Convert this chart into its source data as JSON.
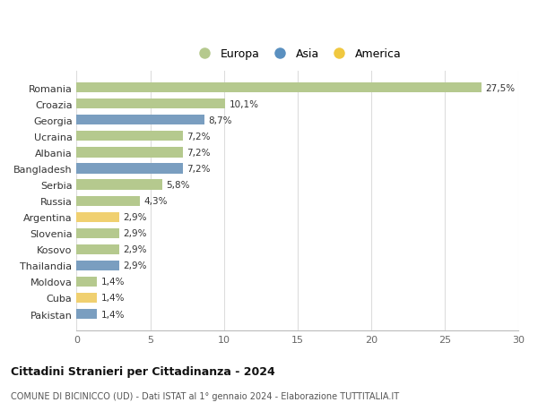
{
  "categories": [
    "Romania",
    "Croazia",
    "Georgia",
    "Ucraina",
    "Albania",
    "Bangladesh",
    "Serbia",
    "Russia",
    "Argentina",
    "Slovenia",
    "Kosovo",
    "Thailandia",
    "Moldova",
    "Cuba",
    "Pakistan"
  ],
  "values": [
    27.5,
    10.1,
    8.7,
    7.2,
    7.2,
    7.2,
    5.8,
    4.3,
    2.9,
    2.9,
    2.9,
    2.9,
    1.4,
    1.4,
    1.4
  ],
  "labels": [
    "27,5%",
    "10,1%",
    "8,7%",
    "7,2%",
    "7,2%",
    "7,2%",
    "5,8%",
    "4,3%",
    "2,9%",
    "2,9%",
    "2,9%",
    "2,9%",
    "1,4%",
    "1,4%",
    "1,4%"
  ],
  "continents": [
    "Europa",
    "Europa",
    "Asia",
    "Europa",
    "Europa",
    "Asia",
    "Europa",
    "Europa",
    "America",
    "Europa",
    "Europa",
    "Asia",
    "Europa",
    "America",
    "Asia"
  ],
  "colors": {
    "Europa": "#b5c98e",
    "Asia": "#7a9ec0",
    "America": "#f0d070"
  },
  "title": "Cittadini Stranieri per Cittadinanza - 2024",
  "subtitle": "COMUNE DI BICINICCO (UD) - Dati ISTAT al 1° gennaio 2024 - Elaborazione TUTTITALIA.IT",
  "xlim": [
    0,
    30
  ],
  "xticks": [
    0,
    5,
    10,
    15,
    20,
    25,
    30
  ],
  "background_color": "#ffffff",
  "grid_color": "#dddddd",
  "legend_items": [
    "Europa",
    "Asia",
    "America"
  ],
  "legend_colors": [
    "#b5c98e",
    "#5a90c0",
    "#f0c840"
  ]
}
